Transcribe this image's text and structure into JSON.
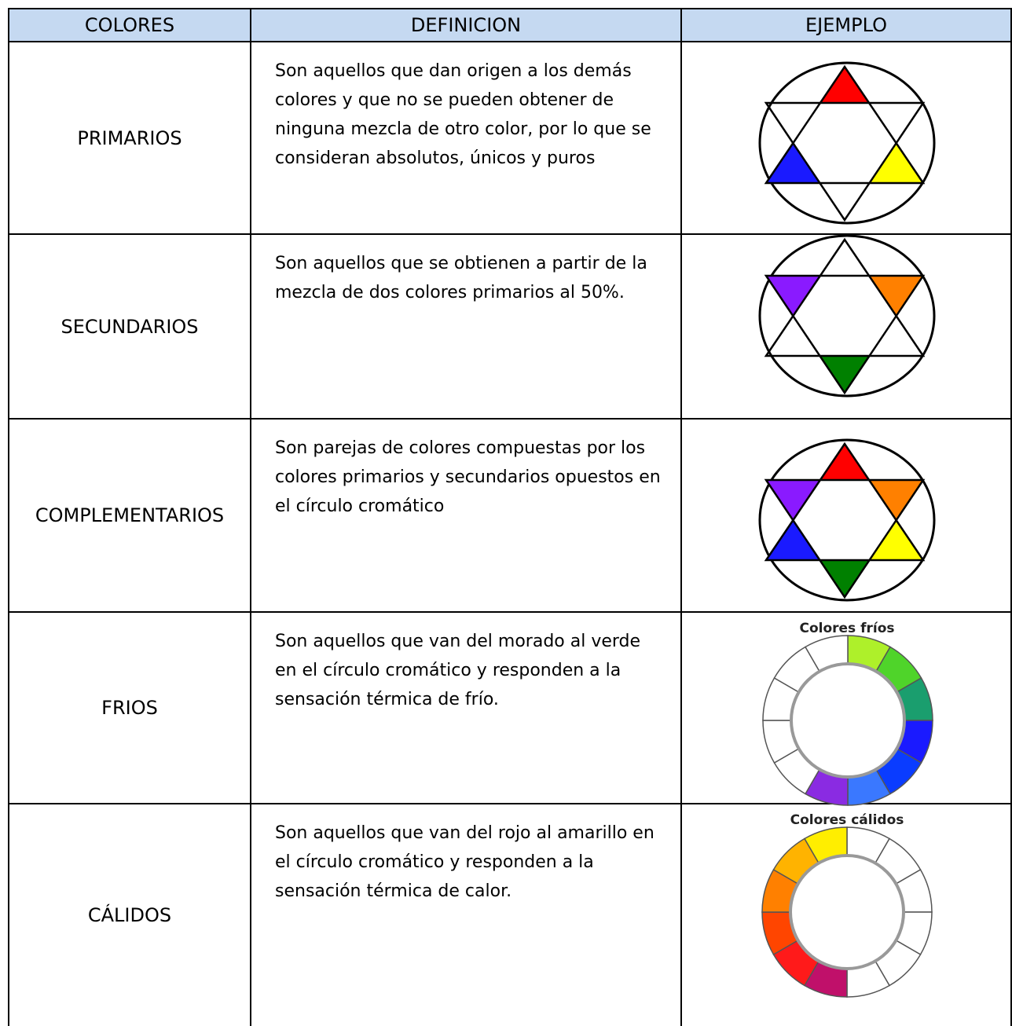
{
  "table": {
    "header": [
      "COLORES",
      "DEFINICION",
      "EJEMPLO"
    ],
    "rows": [
      {
        "name": "PRIMARIOS",
        "definition": "Son aquellos que dan origen a los demás colores y que no se pueden obtener de ninguna mezcla de otro color, por lo que se consideran absolutos, únicos y puros"
      },
      {
        "name": "SECUNDARIOS",
        "definition": "Son aquellos que se obtienen a partir de la mezcla de dos colores primarios al 50%."
      },
      {
        "name": "COMPLEMENTARIOS",
        "definition": "Son parejas de colores compuestas por los colores primarios y secundarios opuestos en el círculo cromático"
      },
      {
        "name": "FRIOS",
        "definition": "Son aquellos que van del morado al verde en el círculo cromático y responden a la sensación térmica de frío.",
        "example_caption": "Colores fríos"
      },
      {
        "name": "CÁLIDOS",
        "definition": "Son aquellos que van del rojo al amarillo en el círculo cromático y responden a la sensación térmica de calor.",
        "example_caption": "Colores cálidos"
      }
    ]
  }
}
